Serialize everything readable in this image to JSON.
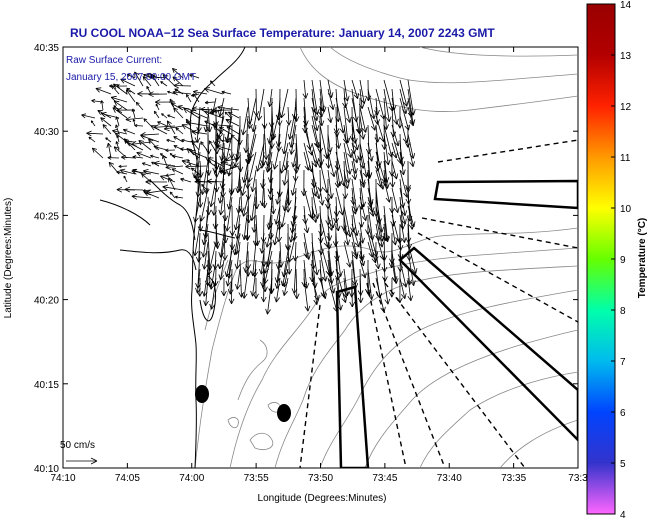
{
  "chart_data": {
    "type": "vector-field-map",
    "title": "RU COOL  NOAA−12  Sea Surface Temperature:  January 14, 2007 2243 GMT",
    "xlabel": "Longitude (Degrees:Minutes)",
    "ylabel": "Latitude (Degrees:Minutes)",
    "x_ticks": [
      "74:10",
      "74:05",
      "74:00",
      "73:55",
      "73:50",
      "73:45",
      "73:40",
      "73:35",
      "73:3"
    ],
    "y_ticks": [
      "40:35",
      "40:30",
      "40:25",
      "40:20",
      "40:15",
      "40:10"
    ],
    "xlim_minutes_west": [
      10,
      30
    ],
    "ylim_minutes_north": [
      10,
      35
    ],
    "annotation": {
      "line1": "Raw Surface Current:",
      "line2": "January 15, 2007 00:00 GMT"
    },
    "scale_label": "50 cm/s",
    "colorbar": {
      "label": "Temperature (°C)",
      "min": 4,
      "max": 14,
      "ticks": [
        "14",
        "13",
        "12",
        "11",
        "10",
        "9",
        "8",
        "7",
        "6",
        "5",
        "4"
      ],
      "stops": [
        "#ff66ff",
        "#3333cc",
        "#0044ff",
        "#00bbee",
        "#00ffaa",
        "#66ff00",
        "#ffff00",
        "#ff9900",
        "#ff2200",
        "#b30000",
        "#990000"
      ]
    },
    "grid": false
  }
}
